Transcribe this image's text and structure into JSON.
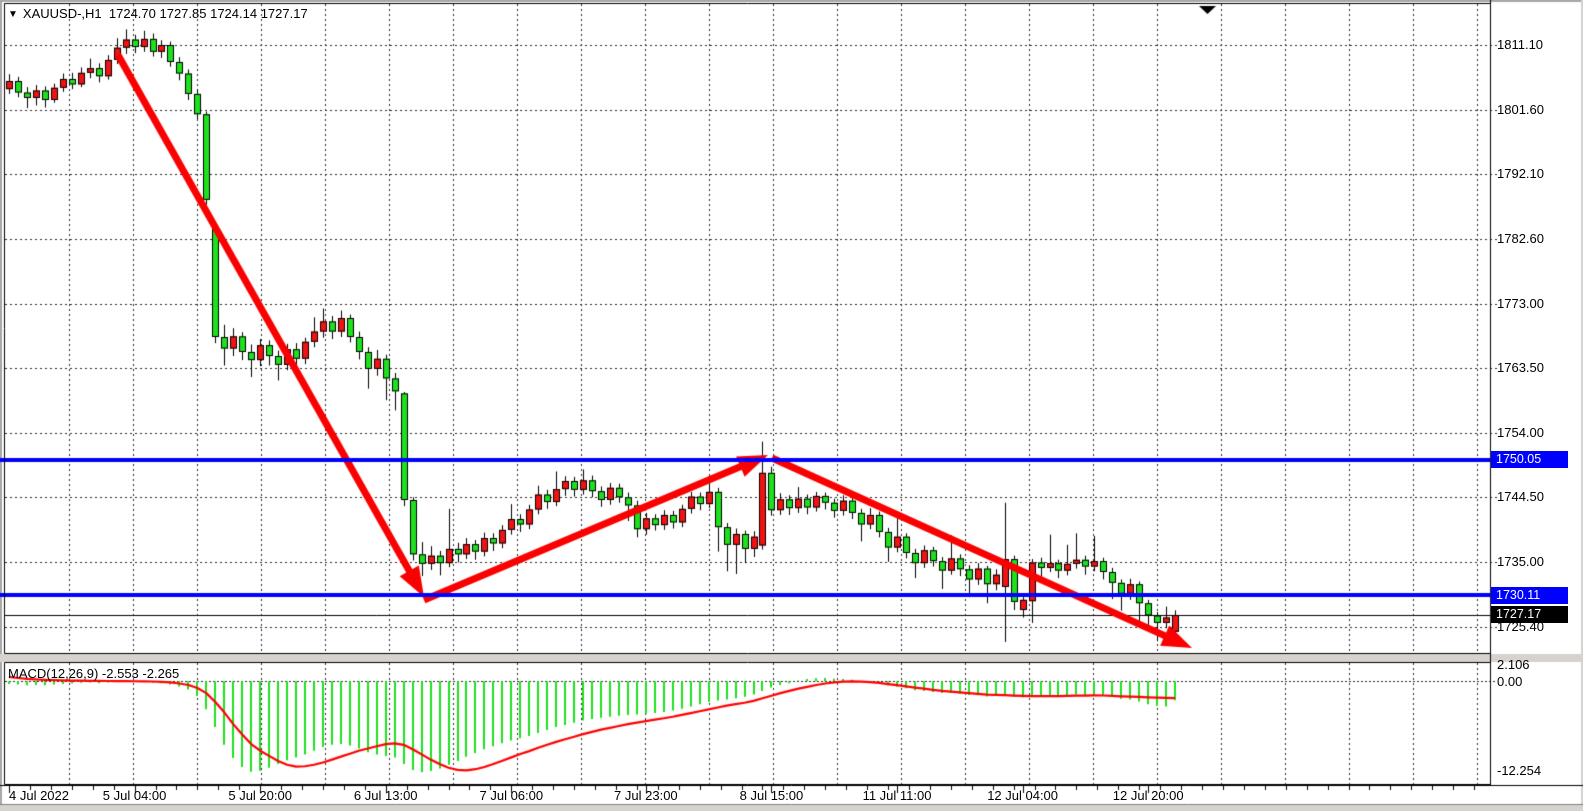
{
  "header": {
    "symbol": "XAUUSD-,H1",
    "ohlc_text": "1724.70 1727.85 1724.14 1727.17",
    "dropdown_glyph": "▼"
  },
  "price_axis": {
    "labels": [
      "1811.10",
      "1801.60",
      "1792.10",
      "1782.60",
      "1773.00",
      "1763.50",
      "1754.00",
      "1744.50",
      "1735.00",
      "1725.40"
    ],
    "values": [
      1811.1,
      1801.6,
      1792.1,
      1782.6,
      1773.0,
      1763.5,
      1754.0,
      1744.5,
      1735.0,
      1725.4
    ],
    "badges": [
      {
        "text": "1750.05",
        "price": 1750.05,
        "bg": "#0000ff"
      },
      {
        "text": "1730.11",
        "price": 1730.11,
        "bg": "#0000ff"
      },
      {
        "text": "1727.17",
        "price": 1727.17,
        "bg": "#000000"
      }
    ]
  },
  "time_axis": {
    "labels": [
      "4 Jul 2022",
      "5 Jul 04:00",
      "5 Jul 20:00",
      "6 Jul 13:00",
      "7 Jul 06:00",
      "7 Jul 23:00",
      "8 Jul 15:00",
      "11 Jul 11:00",
      "12 Jul 04:00",
      "12 Jul 20:00"
    ],
    "indices": [
      0,
      14,
      28,
      42,
      56,
      71,
      85,
      99,
      113,
      127
    ]
  },
  "macd_panel": {
    "label": "MACD(12,26,9) -2.553 -2.265",
    "axis_max": "2.106",
    "axis_zero": "0.00",
    "axis_min": "-12.254"
  },
  "chart_data": {
    "type": "candlestick",
    "title": "XAUUSD-,H1",
    "colors": {
      "bull": "#f21212",
      "bear": "#1ee11e",
      "wick": "#000000",
      "outline": "#000000",
      "hline": "#0000ff",
      "arrow": "#fa0000",
      "grid": "#2a2a2a",
      "signal": "#ff0000",
      "histogram": "#1ee11e",
      "current_price_line": "#000000"
    },
    "hlines": [
      1750.05,
      1730.11
    ],
    "current_price": 1727.17,
    "arrows": [
      {
        "from": [
          118,
          55
        ],
        "to": [
          424,
          597
        ]
      },
      {
        "from": [
          424,
          600
        ],
        "to": [
          768,
          455
        ]
      },
      {
        "from": [
          772,
          458
        ],
        "to": [
          1192,
          648
        ]
      }
    ],
    "candles": [
      [
        1804.6,
        1806.8,
        1803.9,
        1805.8
      ],
      [
        1805.8,
        1806.4,
        1803.4,
        1804.1
      ],
      [
        1804.1,
        1804.9,
        1801.8,
        1803.3
      ],
      [
        1803.3,
        1805.2,
        1802.2,
        1804.4
      ],
      [
        1804.4,
        1805.0,
        1801.9,
        1803.0
      ],
      [
        1803.0,
        1805.4,
        1802.6,
        1804.8
      ],
      [
        1804.8,
        1806.9,
        1804.2,
        1806.1
      ],
      [
        1806.1,
        1807.0,
        1804.6,
        1805.3
      ],
      [
        1805.3,
        1807.8,
        1804.9,
        1807.0
      ],
      [
        1807.0,
        1809.1,
        1806.2,
        1807.7
      ],
      [
        1807.7,
        1808.4,
        1805.6,
        1806.5
      ],
      [
        1806.5,
        1809.6,
        1806.0,
        1808.9
      ],
      [
        1808.9,
        1812.1,
        1808.3,
        1810.7
      ],
      [
        1810.7,
        1813.4,
        1809.8,
        1811.9
      ],
      [
        1811.9,
        1812.6,
        1809.9,
        1810.8
      ],
      [
        1810.8,
        1813.2,
        1810.1,
        1812.0
      ],
      [
        1812.0,
        1812.8,
        1809.4,
        1810.1
      ],
      [
        1810.1,
        1811.8,
        1809.2,
        1811.1
      ],
      [
        1811.1,
        1811.6,
        1807.9,
        1808.6
      ],
      [
        1808.6,
        1809.3,
        1805.9,
        1806.9
      ],
      [
        1806.9,
        1807.5,
        1803.0,
        1803.9
      ],
      [
        1803.9,
        1804.6,
        1800.2,
        1800.9
      ],
      [
        1800.9,
        1801.3,
        1787.6,
        1788.3
      ],
      [
        1784.2,
        1784.6,
        1767.2,
        1768.1
      ],
      [
        1768.1,
        1769.9,
        1763.9,
        1766.4
      ],
      [
        1766.4,
        1769.4,
        1765.3,
        1768.2
      ],
      [
        1768.2,
        1768.8,
        1764.7,
        1765.9
      ],
      [
        1765.9,
        1767.0,
        1762.2,
        1764.7
      ],
      [
        1764.7,
        1767.8,
        1763.8,
        1766.9
      ],
      [
        1766.9,
        1767.6,
        1763.9,
        1765.3
      ],
      [
        1765.3,
        1766.1,
        1761.7,
        1764.0
      ],
      [
        1764.0,
        1767.1,
        1763.2,
        1766.3
      ],
      [
        1766.3,
        1767.2,
        1763.9,
        1764.9
      ],
      [
        1764.9,
        1768.0,
        1764.1,
        1767.4
      ],
      [
        1767.4,
        1771.0,
        1766.6,
        1768.9
      ],
      [
        1768.9,
        1772.3,
        1768.0,
        1770.4
      ],
      [
        1770.4,
        1771.2,
        1767.8,
        1768.9
      ],
      [
        1768.9,
        1772.0,
        1768.1,
        1770.9
      ],
      [
        1770.9,
        1771.4,
        1767.3,
        1768.1
      ],
      [
        1768.1,
        1768.9,
        1764.8,
        1765.9
      ],
      [
        1765.9,
        1766.6,
        1760.5,
        1763.4
      ],
      [
        1763.4,
        1766.2,
        1762.4,
        1764.9
      ],
      [
        1764.9,
        1765.5,
        1758.8,
        1762.0
      ],
      [
        1762.0,
        1762.8,
        1757.3,
        1760.1
      ],
      [
        1759.8,
        1760.0,
        1743.2,
        1744.1
      ],
      [
        1744.1,
        1744.5,
        1735.2,
        1736.1
      ],
      [
        1736.1,
        1737.9,
        1732.9,
        1734.7
      ],
      [
        1734.7,
        1737.3,
        1733.8,
        1735.9
      ],
      [
        1735.9,
        1736.6,
        1733.0,
        1734.8
      ],
      [
        1734.8,
        1742.8,
        1734.2,
        1736.9
      ],
      [
        1736.9,
        1737.8,
        1734.9,
        1736.1
      ],
      [
        1736.1,
        1738.5,
        1735.4,
        1737.6
      ],
      [
        1737.6,
        1738.2,
        1735.3,
        1736.5
      ],
      [
        1736.5,
        1739.3,
        1735.8,
        1738.5
      ],
      [
        1738.5,
        1739.2,
        1736.6,
        1737.7
      ],
      [
        1737.7,
        1740.4,
        1737.0,
        1739.7
      ],
      [
        1739.7,
        1743.5,
        1739.0,
        1741.3
      ],
      [
        1741.3,
        1742.0,
        1739.4,
        1740.5
      ],
      [
        1740.5,
        1743.4,
        1739.8,
        1742.7
      ],
      [
        1742.7,
        1746.2,
        1742.0,
        1744.9
      ],
      [
        1744.9,
        1745.6,
        1742.8,
        1743.8
      ],
      [
        1743.8,
        1748.3,
        1743.2,
        1745.7
      ],
      [
        1745.7,
        1747.6,
        1744.7,
        1746.9
      ],
      [
        1746.9,
        1747.5,
        1744.6,
        1745.6
      ],
      [
        1745.6,
        1748.6,
        1744.9,
        1747.0
      ],
      [
        1747.0,
        1747.7,
        1744.5,
        1745.4
      ],
      [
        1745.4,
        1746.1,
        1743.1,
        1744.1
      ],
      [
        1744.1,
        1746.6,
        1743.4,
        1745.9
      ],
      [
        1745.9,
        1746.5,
        1743.7,
        1744.5
      ],
      [
        1744.5,
        1745.2,
        1741.0,
        1743.3
      ],
      [
        1743.3,
        1744.0,
        1738.6,
        1739.8
      ],
      [
        1739.8,
        1742.2,
        1739.0,
        1741.4
      ],
      [
        1741.4,
        1742.0,
        1739.6,
        1740.4
      ],
      [
        1740.4,
        1742.6,
        1739.7,
        1741.9
      ],
      [
        1741.9,
        1742.5,
        1739.9,
        1740.8
      ],
      [
        1740.8,
        1743.4,
        1740.1,
        1742.8
      ],
      [
        1742.8,
        1745.3,
        1742.1,
        1744.6
      ],
      [
        1744.6,
        1745.2,
        1742.6,
        1743.5
      ],
      [
        1743.5,
        1747.0,
        1742.9,
        1745.3
      ],
      [
        1745.3,
        1745.9,
        1736.5,
        1740.1
      ],
      [
        1740.1,
        1740.7,
        1733.6,
        1737.5
      ],
      [
        1737.5,
        1739.9,
        1733.2,
        1739.1
      ],
      [
        1739.1,
        1739.6,
        1734.8,
        1736.9
      ],
      [
        1736.9,
        1739.5,
        1735.7,
        1738.7
      ],
      [
        1737.4,
        1752.7,
        1736.8,
        1748.1
      ],
      [
        1748.1,
        1749.0,
        1741.8,
        1742.6
      ],
      [
        1742.6,
        1745.1,
        1741.9,
        1744.2
      ],
      [
        1744.2,
        1744.8,
        1741.9,
        1742.9
      ],
      [
        1742.9,
        1746.0,
        1742.2,
        1744.3
      ],
      [
        1744.3,
        1744.9,
        1742.0,
        1743.0
      ],
      [
        1743.0,
        1745.3,
        1742.4,
        1744.7
      ],
      [
        1744.7,
        1745.2,
        1742.7,
        1743.7
      ],
      [
        1743.7,
        1744.3,
        1741.5,
        1742.5
      ],
      [
        1742.5,
        1744.8,
        1741.8,
        1744.0
      ],
      [
        1744.0,
        1744.5,
        1741.3,
        1742.2
      ],
      [
        1742.2,
        1742.8,
        1738.0,
        1740.5
      ],
      [
        1740.5,
        1742.9,
        1739.8,
        1741.9
      ],
      [
        1741.9,
        1742.4,
        1738.6,
        1739.4
      ],
      [
        1739.4,
        1740.0,
        1735.0,
        1737.1
      ],
      [
        1737.1,
        1741.5,
        1736.4,
        1738.7
      ],
      [
        1738.7,
        1739.2,
        1735.5,
        1736.3
      ],
      [
        1736.3,
        1736.9,
        1732.6,
        1734.8
      ],
      [
        1734.8,
        1737.4,
        1734.1,
        1736.7
      ],
      [
        1736.7,
        1737.2,
        1734.3,
        1735.1
      ],
      [
        1735.1,
        1735.7,
        1731.0,
        1733.7
      ],
      [
        1733.7,
        1738.9,
        1733.1,
        1735.5
      ],
      [
        1735.5,
        1736.1,
        1732.9,
        1733.9
      ],
      [
        1733.9,
        1734.5,
        1729.8,
        1732.4
      ],
      [
        1732.4,
        1734.8,
        1731.6,
        1734.0
      ],
      [
        1734.0,
        1734.4,
        1728.9,
        1731.7
      ],
      [
        1731.7,
        1733.9,
        1730.8,
        1733.1
      ],
      [
        1731.3,
        1743.7,
        1723.2,
        1735.4
      ],
      [
        1735.4,
        1735.9,
        1727.9,
        1729.1
      ],
      [
        1727.9,
        1729.8,
        1726.8,
        1729.4
      ],
      [
        1729.2,
        1735.4,
        1726.0,
        1734.9
      ],
      [
        1734.9,
        1735.6,
        1732.8,
        1734.1
      ],
      [
        1734.1,
        1739.0,
        1733.5,
        1734.8
      ],
      [
        1734.8,
        1735.3,
        1732.6,
        1733.7
      ],
      [
        1733.7,
        1737.5,
        1733.0,
        1734.7
      ],
      [
        1734.7,
        1739.2,
        1734.0,
        1735.3
      ],
      [
        1735.3,
        1735.9,
        1733.1,
        1734.3
      ],
      [
        1734.3,
        1738.8,
        1733.6,
        1735.1
      ],
      [
        1735.1,
        1735.6,
        1732.4,
        1733.5
      ],
      [
        1733.5,
        1734.1,
        1729.5,
        1731.9
      ],
      [
        1731.9,
        1732.4,
        1727.8,
        1730.3
      ],
      [
        1730.3,
        1732.5,
        1729.4,
        1731.7
      ],
      [
        1731.7,
        1732.1,
        1725.3,
        1728.9
      ],
      [
        1728.9,
        1729.4,
        1724.8,
        1727.1
      ],
      [
        1727.1,
        1727.6,
        1723.3,
        1726.0
      ],
      [
        1726.0,
        1728.4,
        1725.2,
        1726.8
      ],
      [
        1724.7,
        1727.85,
        1724.14,
        1727.17
      ]
    ],
    "macd": [
      -0.35,
      -0.45,
      -0.55,
      -0.5,
      -0.55,
      -0.45,
      -0.35,
      -0.3,
      -0.2,
      -0.15,
      -0.25,
      -0.15,
      -0.05,
      0.05,
      -0.05,
      -0.1,
      -0.2,
      -0.25,
      -0.45,
      -0.7,
      -1.1,
      -2.0,
      -3.8,
      -6.2,
      -8.6,
      -10.4,
      -11.6,
      -12.25,
      -12.1,
      -11.7,
      -11.2,
      -10.7,
      -10.3,
      -9.9,
      -9.4,
      -8.9,
      -8.6,
      -8.5,
      -8.7,
      -9.1,
      -9.6,
      -9.9,
      -10.1,
      -10.3,
      -11.2,
      -12.0,
      -12.3,
      -12.15,
      -11.8,
      -11.3,
      -10.8,
      -10.2,
      -9.7,
      -9.2,
      -8.8,
      -8.4,
      -8.0,
      -7.7,
      -7.4,
      -7.0,
      -6.6,
      -6.2,
      -5.9,
      -5.6,
      -5.3,
      -5.1,
      -4.95,
      -4.8,
      -4.65,
      -4.55,
      -4.5,
      -4.4,
      -4.3,
      -4.15,
      -3.95,
      -3.7,
      -3.4,
      -3.1,
      -2.8,
      -2.6,
      -2.45,
      -2.3,
      -2.1,
      -1.8,
      -1.3,
      -0.85,
      -0.5,
      -0.25,
      0.1,
      0.3,
      0.4,
      0.45,
      0.35,
      0.3,
      0.2,
      0.05,
      -0.1,
      -0.3,
      -0.55,
      -0.75,
      -0.95,
      -1.2,
      -1.3,
      -1.45,
      -1.6,
      -1.6,
      -1.7,
      -1.85,
      -1.9,
      -2.05,
      -2.0,
      -1.9,
      -2.1,
      -2.2,
      -2.1,
      -2.0,
      -1.9,
      -1.95,
      -1.9,
      -1.8,
      -1.85,
      -1.8,
      -1.9,
      -2.1,
      -2.35,
      -2.45,
      -2.75,
      -3.1,
      -3.3,
      -3.4,
      -2.553
    ],
    "signal": [
      0.6,
      0.45,
      0.32,
      0.25,
      0.2,
      0.16,
      0.12,
      0.1,
      0.08,
      0.06,
      0.05,
      0.04,
      0.03,
      0.02,
      0.01,
      0.0,
      -0.03,
      -0.08,
      -0.15,
      -0.3,
      -0.5,
      -0.9,
      -1.6,
      -2.8,
      -4.2,
      -5.8,
      -7.2,
      -8.5,
      -9.4,
      -10.1,
      -10.8,
      -11.3,
      -11.55,
      -11.5,
      -11.3,
      -11.0,
      -10.6,
      -10.2,
      -9.8,
      -9.4,
      -9.1,
      -8.8,
      -8.5,
      -8.4,
      -8.6,
      -9.2,
      -9.9,
      -10.6,
      -11.2,
      -11.7,
      -12.0,
      -12.05,
      -11.9,
      -11.6,
      -11.2,
      -10.75,
      -10.3,
      -9.85,
      -9.45,
      -9.0,
      -8.6,
      -8.2,
      -7.85,
      -7.5,
      -7.15,
      -6.85,
      -6.55,
      -6.3,
      -6.05,
      -5.8,
      -5.6,
      -5.4,
      -5.2,
      -5.0,
      -4.8,
      -4.55,
      -4.3,
      -4.05,
      -3.8,
      -3.55,
      -3.3,
      -3.1,
      -2.9,
      -2.65,
      -2.3,
      -1.95,
      -1.6,
      -1.3,
      -1.0,
      -0.75,
      -0.5,
      -0.3,
      -0.15,
      -0.05,
      -0.02,
      -0.05,
      -0.12,
      -0.22,
      -0.38,
      -0.52,
      -0.68,
      -0.85,
      -1.0,
      -1.15,
      -1.3,
      -1.4,
      -1.5,
      -1.6,
      -1.7,
      -1.8,
      -1.85,
      -1.88,
      -1.93,
      -1.98,
      -2.02,
      -2.02,
      -2.0,
      -2.0,
      -1.98,
      -1.95,
      -1.93,
      -1.9,
      -1.92,
      -1.97,
      -2.03,
      -2.08,
      -2.12,
      -2.17,
      -2.21,
      -2.24,
      -2.265
    ],
    "layout_hints": {
      "grid": true,
      "macd_min": -12.254,
      "macd_max": 2.106,
      "price_min": 1722.7,
      "price_max": 1813.6
    }
  }
}
